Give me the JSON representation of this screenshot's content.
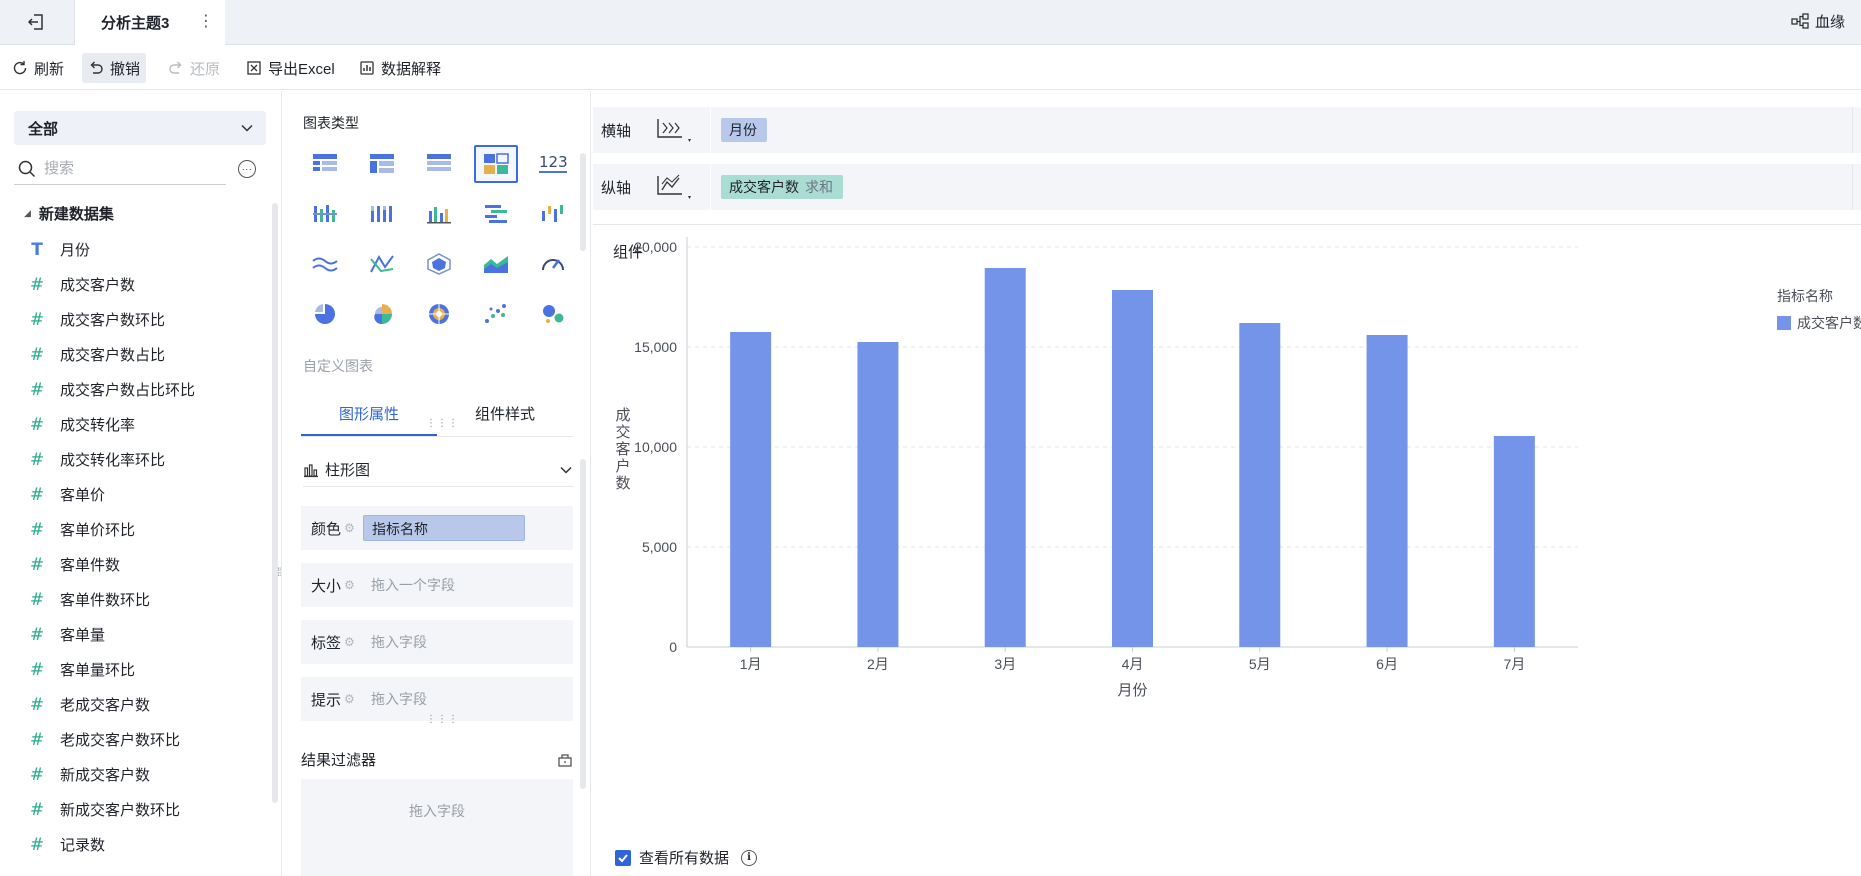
{
  "titlebar": {
    "topic": "分析主题3",
    "more": "⋮",
    "lineage": "血缘"
  },
  "toolbar": {
    "refresh": "刷新",
    "undo": "撤销",
    "redo": "还原",
    "export": "导出Excel",
    "explain": "数据解释"
  },
  "left": {
    "dataset_select": "全部",
    "search_placeholder": "搜索",
    "more": "···",
    "tree_root": "新建数据集",
    "fields": [
      {
        "label": "月份",
        "type": "dim"
      },
      {
        "label": "成交客户数",
        "type": "measure"
      },
      {
        "label": "成交客户数环比",
        "type": "measure"
      },
      {
        "label": "成交客户数占比",
        "type": "measure"
      },
      {
        "label": "成交客户数占比环比",
        "type": "measure"
      },
      {
        "label": "成交转化率",
        "type": "measure"
      },
      {
        "label": "成交转化率环比",
        "type": "measure"
      },
      {
        "label": "客单价",
        "type": "measure"
      },
      {
        "label": "客单价环比",
        "type": "measure"
      },
      {
        "label": "客单件数",
        "type": "measure"
      },
      {
        "label": "客单件数环比",
        "type": "measure"
      },
      {
        "label": "客单量",
        "type": "measure"
      },
      {
        "label": "客单量环比",
        "type": "measure"
      },
      {
        "label": "老成交客户数",
        "type": "measure"
      },
      {
        "label": "老成交客户数环比",
        "type": "measure"
      },
      {
        "label": "新成交客户数",
        "type": "measure"
      },
      {
        "label": "新成交客户数环比",
        "type": "measure"
      },
      {
        "label": "记录数",
        "type": "measure"
      }
    ]
  },
  "mid": {
    "chart_type_title": "图表类型",
    "custom_chart": "自定义图表",
    "tabs": [
      "图形属性",
      "组件样式"
    ],
    "graph_type": "柱形图",
    "props": [
      {
        "label": "颜色",
        "value": "指标名称",
        "filled": true
      },
      {
        "label": "大小",
        "value": "拖入一个字段",
        "filled": false
      },
      {
        "label": "标签",
        "value": "拖入字段",
        "filled": false
      },
      {
        "label": "提示",
        "value": "拖入字段",
        "filled": false
      }
    ],
    "filter_title": "结果过滤器",
    "filter_drop": "拖入字段"
  },
  "shelves": {
    "x_label": "横轴",
    "x_pill": "月份",
    "y_label": "纵轴",
    "y_pill": "成交客户数",
    "y_agg": "求和"
  },
  "chart_card": {
    "component_label": "组件",
    "legend_title": "指标名称",
    "legend_item": "成交客户数",
    "view_all": "查看所有数据"
  },
  "colors": {
    "accent": "#2f64d8",
    "bar": "#7394e9",
    "dim_pill": "#b8c8ea",
    "measure_pill": "#a9ddd3"
  },
  "chart_data": {
    "type": "bar",
    "categories": [
      "1月",
      "2月",
      "3月",
      "4月",
      "5月",
      "6月",
      "7月"
    ],
    "series": [
      {
        "name": "成交客户数",
        "values": [
          15750,
          15250,
          18950,
          17850,
          16200,
          15600,
          10550
        ]
      }
    ],
    "xlabel": "月份",
    "ylabel": "成交客户数",
    "ylim": [
      0,
      20000
    ],
    "yticks": [
      0,
      5000,
      10000,
      15000,
      20000
    ],
    "ytick_labels": [
      "0",
      "5,000",
      "10,000",
      "15,000",
      "20,000"
    ],
    "grid": true,
    "legend": "top-right"
  }
}
